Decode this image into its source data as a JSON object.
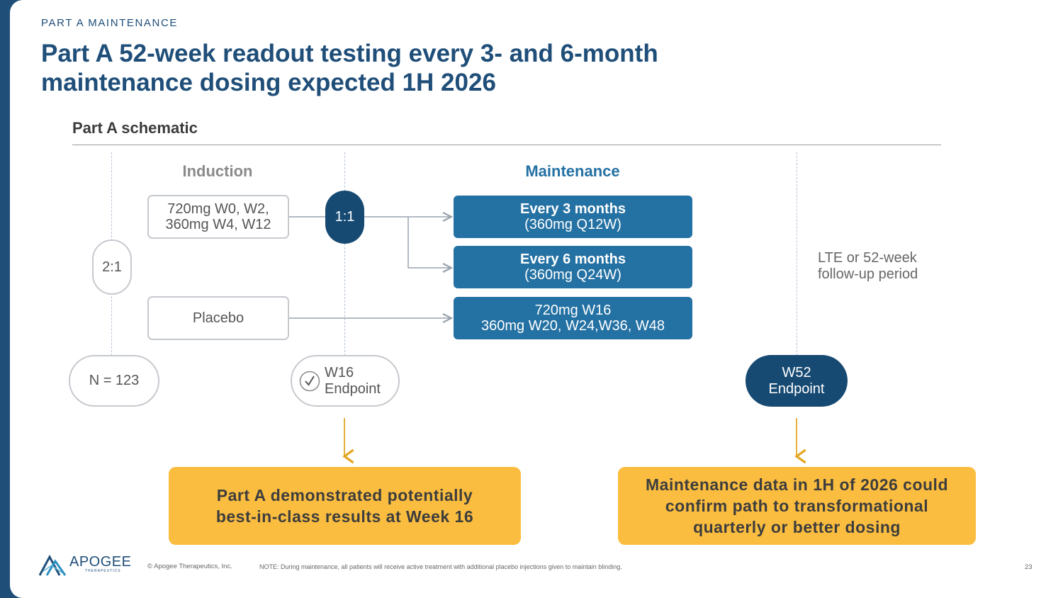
{
  "header": {
    "section_label": "PART A MAINTENANCE",
    "title_line1": "Part A 52-week readout testing every 3- and 6-month",
    "title_line2": "maintenance dosing expected 1H 2026"
  },
  "schematic": {
    "title": "Part A schematic",
    "induction_heading": "Induction",
    "maintenance_heading": "Maintenance",
    "induction_box": {
      "line1": "720mg W0, W2,",
      "line2": "360mg W4, W12"
    },
    "placebo_box": "Placebo",
    "randomization_outer": "2:1",
    "randomization_inner": "1:1",
    "n_label": "N = 123",
    "w16_endpoint": {
      "line1": "W16",
      "line2": "Endpoint"
    },
    "arm_q3m": {
      "line1": "Every 3 months",
      "line2": "(360mg Q12W)"
    },
    "arm_q6m": {
      "line1": "Every 6 months",
      "line2": "(360mg Q24W)"
    },
    "arm_placebo_cross": {
      "line1": "720mg W16",
      "line2": "360mg W20, W24,W36, W48"
    },
    "lte": {
      "line1": "LTE or 52-week",
      "line2": "follow-up period"
    },
    "w52_endpoint": {
      "line1": "W52",
      "line2": "Endpoint"
    }
  },
  "callouts": {
    "left": {
      "line1": "Part A demonstrated potentially",
      "line2": "best-in-class results at Week 16"
    },
    "right": {
      "line1": "Maintenance data in 1H of 2026 could",
      "line2": "confirm path to transformational",
      "line3": "quarterly or better dosing"
    }
  },
  "footer": {
    "logo_text": "APOGEE",
    "logo_subtext": "THERAPEUTICS",
    "copyright": "© Apogee Therapeutics, Inc.",
    "note": "NOTE: During maintenance, all patients will receive active treatment with additional placebo injections given to maintain blinding.",
    "page_number": "23"
  },
  "colors": {
    "navy": "#1f4e79",
    "blue": "#2471a3",
    "dark_blue": "#174a73",
    "gold": "#fbbd3f",
    "maintenance_heading": "#2471a3",
    "induction_heading": "#8a8a8a"
  }
}
